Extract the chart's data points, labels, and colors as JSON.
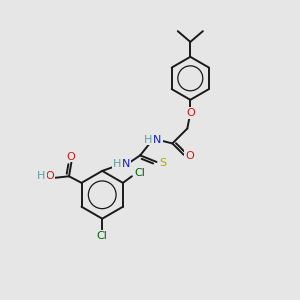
{
  "bg_color": "#e6e6e6",
  "bond_color": "#1a1a1a",
  "bond_width": 1.4,
  "colors": {
    "H": "#5fa0a0",
    "N": "#1a1acc",
    "O": "#cc1a1a",
    "S": "#aaaa00",
    "Cl": "#006600"
  },
  "font_size": 8.0
}
